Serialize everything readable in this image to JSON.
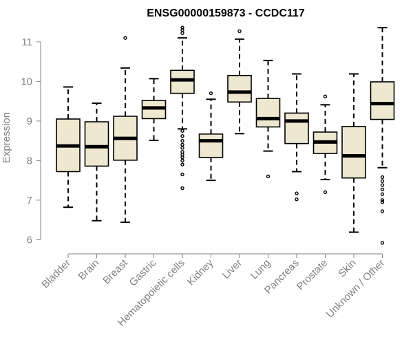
{
  "chart_data": {
    "type": "boxplot",
    "title": "ENSG00000159873 - CCDC117",
    "xlabel": "",
    "ylabel": "Expression",
    "ylim": [
      5.85,
      11.45
    ],
    "yticks": [
      6,
      7,
      8,
      9,
      10,
      11
    ],
    "grid": false,
    "colors": {
      "box_fill": "#EEE8D0",
      "box_stroke": "#000000",
      "median": "#000000",
      "axis": "#808080"
    },
    "categories": [
      "Bladder",
      "Brain",
      "Breast",
      "Gastric",
      "Hematopoietic cells",
      "Kidney",
      "Liver",
      "Lung",
      "Pancreas",
      "Prostate",
      "Skin",
      "Unknown / Other"
    ],
    "boxes": [
      {
        "category": "Bladder",
        "whisker_low": 6.82,
        "q1": 7.72,
        "median": 8.37,
        "q3": 9.05,
        "whisker_high": 9.86,
        "outliers": []
      },
      {
        "category": "Brain",
        "whisker_low": 6.48,
        "q1": 7.86,
        "median": 8.35,
        "q3": 8.98,
        "whisker_high": 9.45,
        "outliers": []
      },
      {
        "category": "Breast",
        "whisker_low": 6.44,
        "q1": 8.01,
        "median": 8.56,
        "q3": 9.12,
        "whisker_high": 10.34,
        "outliers": [
          11.1
        ]
      },
      {
        "category": "Gastric",
        "whisker_low": 8.51,
        "q1": 9.06,
        "median": 9.33,
        "q3": 9.52,
        "whisker_high": 10.07,
        "outliers": []
      },
      {
        "category": "Hematopoietic cells",
        "whisker_low": 8.8,
        "q1": 9.7,
        "median": 10.04,
        "q3": 10.28,
        "whisker_high": 11.1,
        "outliers": [
          11.36,
          11.3,
          11.22,
          8.75,
          8.62,
          8.5,
          8.4,
          8.32,
          8.22,
          8.15,
          8.08,
          8.0,
          7.9,
          7.65,
          7.3
        ]
      },
      {
        "category": "Kidney",
        "whisker_low": 7.5,
        "q1": 8.08,
        "median": 8.5,
        "q3": 8.67,
        "whisker_high": 9.55,
        "outliers": [
          9.7
        ]
      },
      {
        "category": "Liver",
        "whisker_low": 8.68,
        "q1": 9.48,
        "median": 9.73,
        "q3": 10.15,
        "whisker_high": 11.07,
        "outliers": [
          11.27
        ]
      },
      {
        "category": "Lung",
        "whisker_low": 8.24,
        "q1": 8.85,
        "median": 9.06,
        "q3": 9.57,
        "whisker_high": 10.53,
        "outliers": [
          7.6
        ]
      },
      {
        "category": "Pancreas",
        "whisker_low": 7.72,
        "q1": 8.43,
        "median": 9.0,
        "q3": 9.2,
        "whisker_high": 10.19,
        "outliers": [
          7.17,
          7.02
        ]
      },
      {
        "category": "Prostate",
        "whisker_low": 7.52,
        "q1": 8.18,
        "median": 8.47,
        "q3": 8.72,
        "whisker_high": 9.41,
        "outliers": [
          9.62,
          7.2
        ]
      },
      {
        "category": "Skin",
        "whisker_low": 6.19,
        "q1": 7.56,
        "median": 8.12,
        "q3": 8.86,
        "whisker_high": 10.19,
        "outliers": []
      },
      {
        "category": "Unknown / Other",
        "whisker_low": 7.82,
        "q1": 9.04,
        "median": 9.44,
        "q3": 9.99,
        "whisker_high": 11.36,
        "outliers": [
          7.58,
          7.48,
          7.38,
          7.27,
          7.15,
          7.0,
          6.95,
          6.72,
          5.92
        ]
      }
    ]
  }
}
